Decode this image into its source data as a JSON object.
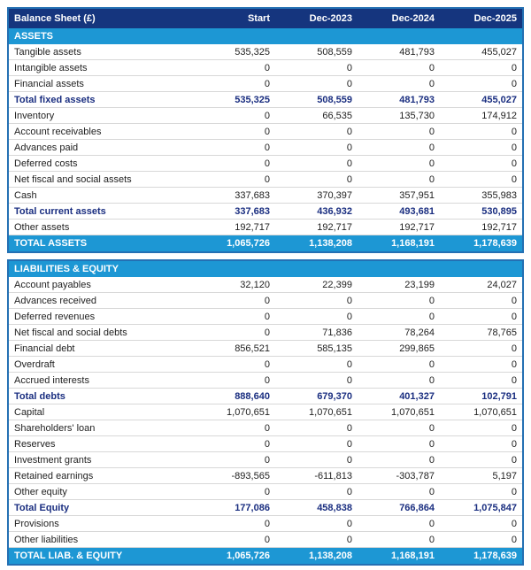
{
  "colors": {
    "header_navy": "#15357E",
    "band_blue": "#1D97D4",
    "border_blue": "#2470B3",
    "total_text_navy": "#1A2E80",
    "body_text": "#222222",
    "row_separator": "#D8D8D8",
    "header_text": "#FFFFFF"
  },
  "chart_data": {
    "type": "table",
    "title": "Balance Sheet (£)",
    "columns": [
      "Start",
      "Dec-2023",
      "Dec-2024",
      "Dec-2025"
    ],
    "sections": [
      {
        "header": "ASSETS",
        "rows": [
          {
            "label": "Tangible assets",
            "bold": false,
            "values": [
              "535,325",
              "508,559",
              "481,793",
              "455,027"
            ]
          },
          {
            "label": "Intangible assets",
            "bold": false,
            "values": [
              "0",
              "0",
              "0",
              "0"
            ]
          },
          {
            "label": "Financial assets",
            "bold": false,
            "values": [
              "0",
              "0",
              "0",
              "0"
            ]
          },
          {
            "label": "Total fixed assets",
            "bold": true,
            "values": [
              "535,325",
              "508,559",
              "481,793",
              "455,027"
            ]
          },
          {
            "label": "Inventory",
            "bold": false,
            "values": [
              "0",
              "66,535",
              "135,730",
              "174,912"
            ]
          },
          {
            "label": "Account receivables",
            "bold": false,
            "values": [
              "0",
              "0",
              "0",
              "0"
            ]
          },
          {
            "label": "Advances paid",
            "bold": false,
            "values": [
              "0",
              "0",
              "0",
              "0"
            ]
          },
          {
            "label": "Deferred costs",
            "bold": false,
            "values": [
              "0",
              "0",
              "0",
              "0"
            ]
          },
          {
            "label": "Net fiscal and social assets",
            "bold": false,
            "values": [
              "0",
              "0",
              "0",
              "0"
            ]
          },
          {
            "label": "Cash",
            "bold": false,
            "values": [
              "337,683",
              "370,397",
              "357,951",
              "355,983"
            ]
          },
          {
            "label": "Total current assets",
            "bold": true,
            "values": [
              "337,683",
              "436,932",
              "493,681",
              "530,895"
            ]
          },
          {
            "label": "Other assets",
            "bold": false,
            "values": [
              "192,717",
              "192,717",
              "192,717",
              "192,717"
            ]
          }
        ],
        "total": {
          "label": "TOTAL ASSETS",
          "values": [
            "1,065,726",
            "1,138,208",
            "1,168,191",
            "1,178,639"
          ]
        }
      },
      {
        "header": "LIABILITIES & EQUITY",
        "rows": [
          {
            "label": "Account payables",
            "bold": false,
            "values": [
              "32,120",
              "22,399",
              "23,199",
              "24,027"
            ]
          },
          {
            "label": "Advances received",
            "bold": false,
            "values": [
              "0",
              "0",
              "0",
              "0"
            ]
          },
          {
            "label": "Deferred revenues",
            "bold": false,
            "values": [
              "0",
              "0",
              "0",
              "0"
            ]
          },
          {
            "label": "Net fiscal and social debts",
            "bold": false,
            "values": [
              "0",
              "71,836",
              "78,264",
              "78,765"
            ]
          },
          {
            "label": "Financial debt",
            "bold": false,
            "values": [
              "856,521",
              "585,135",
              "299,865",
              "0"
            ]
          },
          {
            "label": "Overdraft",
            "bold": false,
            "values": [
              "0",
              "0",
              "0",
              "0"
            ]
          },
          {
            "label": "Accrued interests",
            "bold": false,
            "values": [
              "0",
              "0",
              "0",
              "0"
            ]
          },
          {
            "label": "Total debts",
            "bold": true,
            "values": [
              "888,640",
              "679,370",
              "401,327",
              "102,791"
            ]
          },
          {
            "label": "Capital",
            "bold": false,
            "values": [
              "1,070,651",
              "1,070,651",
              "1,070,651",
              "1,070,651"
            ]
          },
          {
            "label": "Shareholders' loan",
            "bold": false,
            "values": [
              "0",
              "0",
              "0",
              "0"
            ]
          },
          {
            "label": "Reserves",
            "bold": false,
            "values": [
              "0",
              "0",
              "0",
              "0"
            ]
          },
          {
            "label": "Investment grants",
            "bold": false,
            "values": [
              "0",
              "0",
              "0",
              "0"
            ]
          },
          {
            "label": "Retained earnings",
            "bold": false,
            "values": [
              "-893,565",
              "-611,813",
              "-303,787",
              "5,197"
            ]
          },
          {
            "label": "Other equity",
            "bold": false,
            "values": [
              "0",
              "0",
              "0",
              "0"
            ]
          },
          {
            "label": "Total Equity",
            "bold": true,
            "values": [
              "177,086",
              "458,838",
              "766,864",
              "1,075,847"
            ]
          },
          {
            "label": "Provisions",
            "bold": false,
            "values": [
              "0",
              "0",
              "0",
              "0"
            ]
          },
          {
            "label": "Other liabilities",
            "bold": false,
            "values": [
              "0",
              "0",
              "0",
              "0"
            ]
          }
        ],
        "total": {
          "label": "TOTAL LIAB. & EQUITY",
          "values": [
            "1,065,726",
            "1,138,208",
            "1,168,191",
            "1,178,639"
          ]
        }
      }
    ]
  }
}
